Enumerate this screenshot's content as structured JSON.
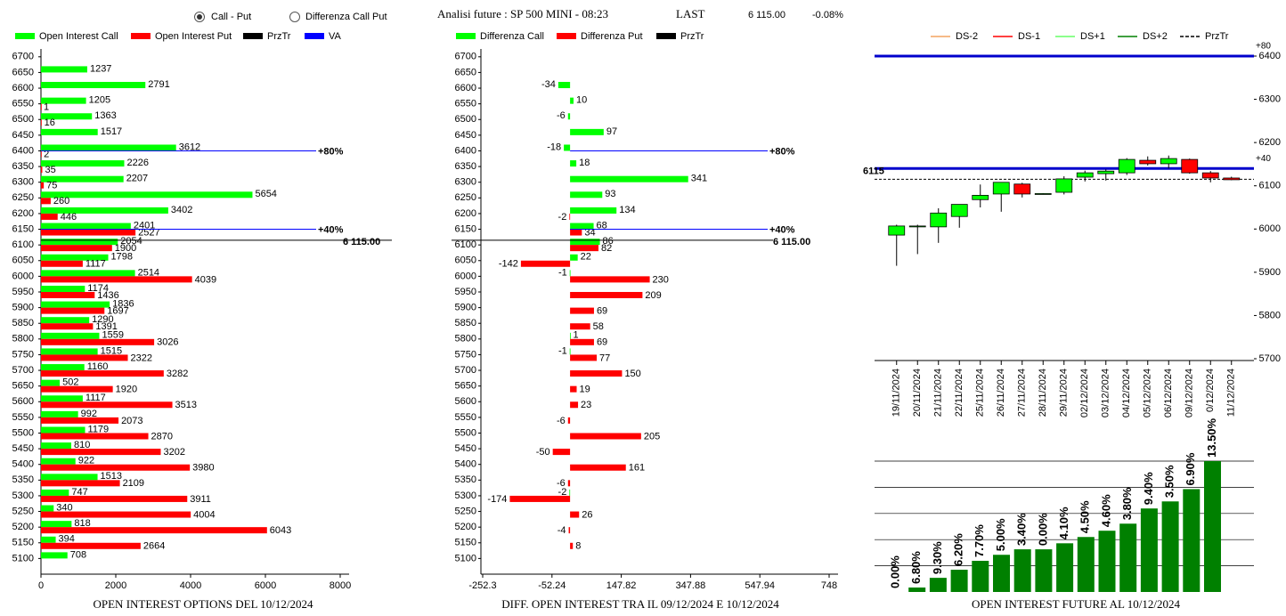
{
  "header": {
    "options": [
      "Call - Put",
      "Differenza Call Put"
    ],
    "selected": 0,
    "instrument": "Analisi future : SP 500 MINI - 08:23",
    "last_label": "LAST",
    "last": "6 115.00",
    "change": "-0.08%"
  },
  "chart_data": [
    {
      "type": "hbar",
      "title": "OPEN INTEREST OPTIONS DEL 10/12/2024",
      "y": [
        6700,
        6650,
        6600,
        6550,
        6500,
        6450,
        6400,
        6350,
        6300,
        6250,
        6200,
        6150,
        6100,
        6050,
        6000,
        5950,
        5900,
        5850,
        5800,
        5750,
        5700,
        5650,
        5600,
        5550,
        5500,
        5450,
        5400,
        5350,
        5300,
        5250,
        5200,
        5150,
        5100
      ],
      "ylim": [
        5050,
        6725
      ],
      "series": [
        {
          "name": "Open Interest Call",
          "color": "#00ff00",
          "values": [
            null,
            1237,
            2791,
            1205,
            1363,
            1517,
            3612,
            2226,
            2207,
            5654,
            3402,
            2401,
            2054,
            1798,
            2514,
            1174,
            1836,
            1290,
            1559,
            1515,
            1160,
            502,
            1117,
            992,
            1179,
            810,
            922,
            1513,
            747,
            340,
            818,
            394,
            708
          ]
        },
        {
          "name": "Open Interest Put",
          "color": "#ff0000",
          "values": [
            null,
            null,
            null,
            1,
            16,
            null,
            2,
            35,
            75,
            260,
            446,
            2527,
            1900,
            1117,
            4039,
            1436,
            1697,
            1391,
            3026,
            2322,
            3282,
            1920,
            3513,
            2073,
            2870,
            3202,
            3980,
            2109,
            3911,
            4004,
            6043,
            2664,
            null
          ]
        }
      ],
      "legend_extra": [
        {
          "name": "PrzTr",
          "color": "#000000"
        },
        {
          "name": "VA",
          "color": "#0000ff"
        }
      ],
      "xlim": [
        0,
        8000
      ],
      "xticks": [
        0,
        2000,
        4000,
        6000,
        8000
      ],
      "va_levels": [
        {
          "value": 6400,
          "label": "+80%"
        },
        {
          "value": 6150,
          "label": "+40%"
        }
      ],
      "price": {
        "value": 6115,
        "label": "6 115.00"
      }
    },
    {
      "type": "hbar",
      "title": "DIFF. OPEN INTEREST TRA IL 09/12/2024 E 10/12/2024",
      "y": [
        6700,
        6650,
        6600,
        6550,
        6500,
        6450,
        6400,
        6350,
        6300,
        6250,
        6200,
        6150,
        6100,
        6050,
        6000,
        5950,
        5900,
        5850,
        5800,
        5750,
        5700,
        5650,
        5600,
        5550,
        5500,
        5450,
        5400,
        5350,
        5300,
        5250,
        5200,
        5150,
        5100
      ],
      "ylim": [
        5050,
        6725
      ],
      "series": [
        {
          "name": "Differenza Call",
          "color": "#00ff00",
          "values": [
            null,
            null,
            -34,
            10,
            -6,
            97,
            -18,
            18,
            341,
            93,
            134,
            68,
            86,
            22,
            -1,
            null,
            null,
            null,
            1,
            -1,
            null,
            null,
            null,
            null,
            null,
            null,
            null,
            null,
            -2,
            null,
            null,
            null,
            null
          ]
        },
        {
          "name": "Differenza Put",
          "color": "#ff0000",
          "values": [
            null,
            null,
            null,
            null,
            null,
            null,
            null,
            null,
            null,
            null,
            -2,
            34,
            82,
            -142,
            230,
            209,
            69,
            58,
            69,
            77,
            150,
            19,
            23,
            -6,
            205,
            -50,
            161,
            -6,
            -174,
            26,
            -4,
            8,
            null
          ]
        }
      ],
      "legend_extra": [
        {
          "name": "PrzTr",
          "color": "#000000"
        }
      ],
      "xlim": [
        -252.3,
        748
      ],
      "xticks": [
        -252.3,
        -52.24,
        147.82,
        347.88,
        547.94,
        748
      ],
      "va_levels": [
        {
          "value": 6400,
          "label": "+80%"
        },
        {
          "value": 6150,
          "label": "+40%"
        }
      ],
      "price": {
        "value": 6115,
        "label": "6 115.00"
      }
    },
    {
      "type": "candlestick",
      "categories": [
        "19/11/2024",
        "20/11/2024",
        "21/11/2024",
        "22/11/2024",
        "25/11/2024",
        "26/11/2024",
        "27/11/2024",
        "28/11/2024",
        "29/11/2024",
        "02/12/2024",
        "03/12/2024",
        "04/12/2024",
        "05/12/2024",
        "06/12/2024",
        "09/12/2024",
        "0/12/2024",
        "11/12/2024"
      ],
      "open": [
        5986,
        6005,
        6005,
        6029,
        6068,
        6081,
        6104,
        6080,
        6085,
        6120,
        6128,
        6130,
        6159,
        6151,
        6161,
        6130,
        6118
      ],
      "high": [
        6010,
        6010,
        6048,
        6057,
        6103,
        6108,
        6107,
        6083,
        6122,
        6135,
        6138,
        6164,
        6168,
        6170,
        6163,
        6134,
        6121
      ],
      "low": [
        5915,
        5942,
        5968,
        6003,
        6050,
        6040,
        6073,
        6080,
        6080,
        6110,
        6112,
        6125,
        6147,
        6140,
        6128,
        6108,
        6113
      ],
      "close": [
        6007,
        6007,
        6037,
        6057,
        6078,
        6108,
        6081,
        6082,
        6116,
        6130,
        6134,
        6161,
        6151,
        6163,
        6130,
        6118,
        6114
      ],
      "up_color": "#00ff00",
      "down_color": "#ff0000",
      "ylim": [
        5700,
        6400
      ],
      "yticks": [
        5700,
        5800,
        5900,
        6000,
        6100,
        6200,
        6300,
        6400
      ],
      "legend": [
        {
          "name": "DS-2",
          "color": "#f4a460"
        },
        {
          "name": "DS-1",
          "color": "#ff0000"
        },
        {
          "name": "DS+1",
          "color": "#66ff66"
        },
        {
          "name": "DS+2",
          "color": "#008000"
        },
        {
          "name": "PrzTr",
          "color": "#000000",
          "dashed": true
        }
      ],
      "va_levels": [
        {
          "value": 6400,
          "label": "+80"
        },
        {
          "value": 6140,
          "label": "+40"
        }
      ],
      "price": {
        "value": 6115,
        "label": "6115"
      }
    },
    {
      "type": "bar",
      "title": "OPEN INTEREST FUTURE AL 10/12/2024",
      "values": [
        0,
        0.17,
        0.54,
        0.85,
        1.19,
        1.42,
        1.63,
        1.63,
        1.86,
        2.1,
        2.34,
        2.61,
        3.19,
        3.46,
        3.93,
        5.0
      ],
      "bar_labels": [
        "0.00%",
        "6.80%",
        "9.30%",
        "6.20%",
        "7.70%",
        "5.00%",
        "3.40%",
        "0.00%",
        "4.10%",
        "4.50%",
        "4.60%",
        "3.80%",
        "9.40%",
        "3.50%",
        "6.90%",
        "13.50%"
      ],
      "color": "#008000",
      "ylim": [
        0,
        5
      ],
      "grid_levels": [
        1,
        2,
        3,
        4,
        5
      ]
    }
  ]
}
